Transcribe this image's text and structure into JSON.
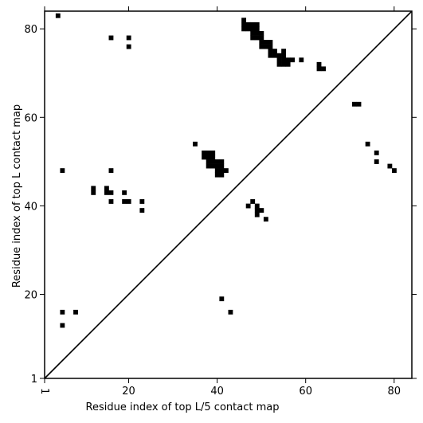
{
  "chart_data": {
    "type": "heatmap",
    "xlabel": "Residue index of top L/5 contact map",
    "ylabel": "Residue index of top L contact map",
    "xlim": [
      1,
      84
    ],
    "ylim": [
      1,
      84
    ],
    "x_ticks": [
      {
        "value": 1,
        "label": "1"
      },
      {
        "value": 20,
        "label": "20"
      },
      {
        "value": 40,
        "label": "40"
      },
      {
        "value": 60,
        "label": "60"
      },
      {
        "value": 80,
        "label": "80"
      }
    ],
    "y_ticks": [
      {
        "value": 1,
        "label": "1"
      },
      {
        "value": 20,
        "label": "20"
      },
      {
        "value": 40,
        "label": "40"
      },
      {
        "value": 60,
        "label": "60"
      },
      {
        "value": 80,
        "label": "80"
      }
    ],
    "diagonal": [
      [
        1,
        1
      ],
      [
        84,
        84
      ]
    ],
    "contact_color": "#000000",
    "contacts": [
      [
        4,
        83
      ],
      [
        16,
        78
      ],
      [
        20,
        78
      ],
      [
        20,
        76
      ],
      [
        46,
        82
      ],
      [
        46,
        81
      ],
      [
        47,
        81
      ],
      [
        48,
        81
      ],
      [
        49,
        81
      ],
      [
        46,
        80
      ],
      [
        47,
        80
      ],
      [
        48,
        80
      ],
      [
        49,
        80
      ],
      [
        48,
        79
      ],
      [
        49,
        79
      ],
      [
        50,
        79
      ],
      [
        48,
        78
      ],
      [
        49,
        78
      ],
      [
        50,
        78
      ],
      [
        50,
        77
      ],
      [
        51,
        77
      ],
      [
        52,
        77
      ],
      [
        50,
        76
      ],
      [
        51,
        76
      ],
      [
        52,
        76
      ],
      [
        52,
        75
      ],
      [
        53,
        75
      ],
      [
        55,
        75
      ],
      [
        52,
        74
      ],
      [
        53,
        74
      ],
      [
        54,
        74
      ],
      [
        55,
        74
      ],
      [
        54,
        73
      ],
      [
        55,
        73
      ],
      [
        56,
        73
      ],
      [
        57,
        73
      ],
      [
        59,
        73
      ],
      [
        54,
        72
      ],
      [
        55,
        72
      ],
      [
        56,
        72
      ],
      [
        63,
        72
      ],
      [
        63,
        71
      ],
      [
        64,
        71
      ],
      [
        71,
        63
      ],
      [
        72,
        63
      ],
      [
        35,
        54
      ],
      [
        74,
        54
      ],
      [
        37,
        52
      ],
      [
        38,
        52
      ],
      [
        39,
        52
      ],
      [
        76,
        52
      ],
      [
        37,
        51
      ],
      [
        38,
        51
      ],
      [
        39,
        51
      ],
      [
        38,
        50
      ],
      [
        39,
        50
      ],
      [
        40,
        50
      ],
      [
        41,
        50
      ],
      [
        76,
        50
      ],
      [
        38,
        49
      ],
      [
        39,
        49
      ],
      [
        40,
        49
      ],
      [
        41,
        49
      ],
      [
        79,
        49
      ],
      [
        5,
        48
      ],
      [
        16,
        48
      ],
      [
        40,
        48
      ],
      [
        41,
        48
      ],
      [
        42,
        48
      ],
      [
        80,
        48
      ],
      [
        40,
        47
      ],
      [
        41,
        47
      ],
      [
        12,
        44
      ],
      [
        15,
        44
      ],
      [
        12,
        43
      ],
      [
        15,
        43
      ],
      [
        16,
        43
      ],
      [
        19,
        43
      ],
      [
        16,
        41
      ],
      [
        19,
        41
      ],
      [
        20,
        41
      ],
      [
        23,
        41
      ],
      [
        48,
        41
      ],
      [
        47,
        40
      ],
      [
        49,
        40
      ],
      [
        23,
        39
      ],
      [
        49,
        39
      ],
      [
        50,
        39
      ],
      [
        49,
        38
      ],
      [
        51,
        37
      ],
      [
        41,
        19
      ],
      [
        5,
        16
      ],
      [
        8,
        16
      ],
      [
        43,
        16
      ],
      [
        5,
        13
      ]
    ]
  }
}
